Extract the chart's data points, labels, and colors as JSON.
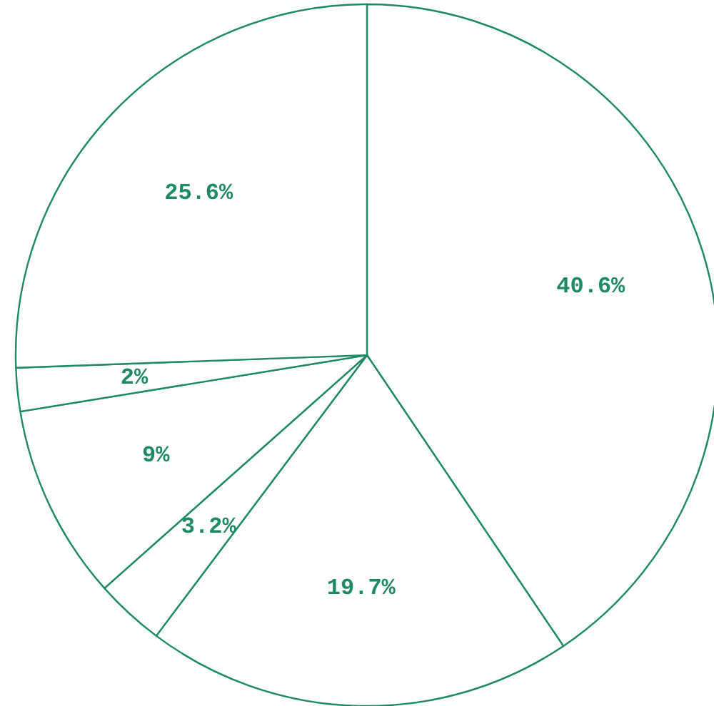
{
  "chart_data": {
    "type": "pie",
    "categories": [
      null,
      null,
      null,
      null,
      null,
      null
    ],
    "values": [
      40.6,
      19.7,
      3.2,
      9,
      2,
      25.6
    ],
    "colors": [
      "#ffffff",
      "#ffffff",
      "#ffffff",
      "#ffffff",
      "#ffffff",
      "#ffffff"
    ],
    "value_labels": [
      "40.6%",
      "19.7%",
      "3.2%",
      "9%",
      "2%",
      "25.6%"
    ]
  }
}
